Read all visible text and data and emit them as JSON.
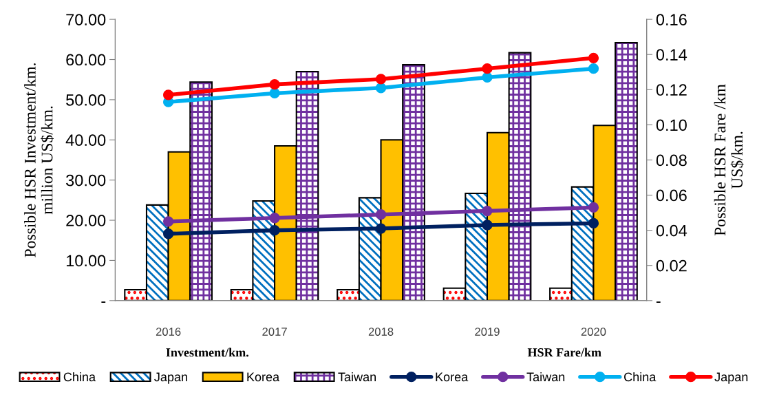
{
  "chart_data": {
    "type": "bar",
    "categories": [
      "2016",
      "2017",
      "2018",
      "2019",
      "2020"
    ],
    "ylabel": "Possible HSR Investment/km.\nmillion US$/km.",
    "y2label": "Possible HSR Fare /km\nUS$/km.",
    "ylim": [
      0,
      70
    ],
    "yticks": [
      {
        "value": 0,
        "label": "-"
      },
      {
        "value": 10,
        "label": "10.00"
      },
      {
        "value": 20,
        "label": "20.00"
      },
      {
        "value": 30,
        "label": "30.00"
      },
      {
        "value": 40,
        "label": "40.00"
      },
      {
        "value": 50,
        "label": "50.00"
      },
      {
        "value": 60,
        "label": "60.00"
      },
      {
        "value": 70,
        "label": "70.00"
      }
    ],
    "y2lim": [
      0,
      0.16
    ],
    "y2ticks": [
      {
        "value": 0,
        "label": "-"
      },
      {
        "value": 0.02,
        "label": "0.02"
      },
      {
        "value": 0.04,
        "label": "0.04"
      },
      {
        "value": 0.06,
        "label": "0.06"
      },
      {
        "value": 0.08,
        "label": "0.08"
      },
      {
        "value": 0.1,
        "label": "0.10"
      },
      {
        "value": 0.12,
        "label": "0.12"
      },
      {
        "value": 0.14,
        "label": "0.14"
      },
      {
        "value": 0.16,
        "label": "0.16"
      }
    ],
    "series": [
      {
        "name": "China",
        "color": "#ff0000",
        "values": [
          2.7,
          2.7,
          2.7,
          3.1,
          3.1
        ]
      },
      {
        "name": "Japan",
        "color": "#0070c0",
        "values": [
          23.8,
          24.8,
          25.6,
          26.7,
          28.3
        ]
      },
      {
        "name": "Korea",
        "color": "#ffc000",
        "values": [
          37.0,
          38.5,
          40.0,
          41.8,
          43.6
        ]
      },
      {
        "name": "Taiwan",
        "color": "#7030a0",
        "values": [
          54.4,
          57.0,
          58.7,
          61.7,
          64.2
        ]
      },
      {
        "name": "Korea",
        "type": "line",
        "axis": "y2",
        "color": "#002060",
        "values": [
          0.038,
          0.04,
          0.041,
          0.043,
          0.044
        ]
      },
      {
        "name": "Taiwan",
        "type": "line",
        "axis": "y2",
        "color": "#7030a0",
        "values": [
          0.045,
          0.047,
          0.049,
          0.051,
          0.053
        ]
      },
      {
        "name": "China",
        "type": "line",
        "axis": "y2",
        "color": "#00b0f0",
        "values": [
          0.113,
          0.118,
          0.121,
          0.127,
          0.132
        ]
      },
      {
        "name": "Japan",
        "type": "line",
        "axis": "y2",
        "color": "#ff0000",
        "values": [
          0.117,
          0.123,
          0.126,
          0.132,
          0.138
        ]
      }
    ],
    "marker": "circle",
    "grid": false,
    "legend": "bottom",
    "annotations": [
      "Investment/km.",
      "HSR Fare/km"
    ]
  }
}
